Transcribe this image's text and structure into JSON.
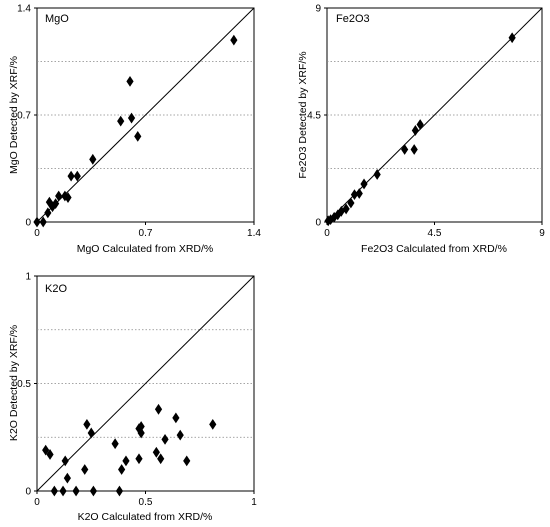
{
  "chart_data": [
    {
      "type": "scatter",
      "title": "MgO",
      "xlabel": "MgO Calculated from XRD/%",
      "ylabel": "MgO Detected by XRF/%",
      "xlim": [
        0,
        1.4
      ],
      "ylim": [
        0,
        1.4
      ],
      "xticks": [
        "0",
        "0.7",
        "1.4"
      ],
      "yticks": [
        "0",
        "0.7",
        "1.4"
      ],
      "grid": "horizontal dotted",
      "reference_line": "y = x",
      "marker": "diamond",
      "points": [
        {
          "x": 0.0,
          "y": 0.0
        },
        {
          "x": 0.04,
          "y": 0.0
        },
        {
          "x": 0.07,
          "y": 0.06
        },
        {
          "x": 0.08,
          "y": 0.13
        },
        {
          "x": 0.1,
          "y": 0.1
        },
        {
          "x": 0.12,
          "y": 0.12
        },
        {
          "x": 0.14,
          "y": 0.17
        },
        {
          "x": 0.18,
          "y": 0.17
        },
        {
          "x": 0.2,
          "y": 0.16
        },
        {
          "x": 0.22,
          "y": 0.3
        },
        {
          "x": 0.26,
          "y": 0.3
        },
        {
          "x": 0.36,
          "y": 0.41
        },
        {
          "x": 0.54,
          "y": 0.66
        },
        {
          "x": 0.6,
          "y": 0.92
        },
        {
          "x": 0.61,
          "y": 0.68
        },
        {
          "x": 0.65,
          "y": 0.56
        },
        {
          "x": 1.27,
          "y": 1.19
        }
      ]
    },
    {
      "type": "scatter",
      "title": "Fe2O3",
      "xlabel": "Fe2O3 Calculated from XRD/%",
      "ylabel": "Fe2O3 Detected by XRF/%",
      "xlim": [
        0,
        9
      ],
      "ylim": [
        0,
        9
      ],
      "xticks": [
        "0",
        "4.5",
        "9"
      ],
      "yticks": [
        "0",
        "4.5",
        "9"
      ],
      "grid": "horizontal dotted",
      "reference_line": "y = x",
      "marker": "diamond",
      "points": [
        {
          "x": 0.05,
          "y": 0.05
        },
        {
          "x": 0.15,
          "y": 0.1
        },
        {
          "x": 0.3,
          "y": 0.2
        },
        {
          "x": 0.45,
          "y": 0.3
        },
        {
          "x": 0.6,
          "y": 0.45
        },
        {
          "x": 0.8,
          "y": 0.55
        },
        {
          "x": 1.0,
          "y": 0.8
        },
        {
          "x": 1.15,
          "y": 1.15
        },
        {
          "x": 1.35,
          "y": 1.2
        },
        {
          "x": 1.55,
          "y": 1.6
        },
        {
          "x": 2.1,
          "y": 2.0
        },
        {
          "x": 3.25,
          "y": 3.05
        },
        {
          "x": 3.65,
          "y": 3.05
        },
        {
          "x": 3.7,
          "y": 3.85
        },
        {
          "x": 3.9,
          "y": 4.1
        },
        {
          "x": 7.75,
          "y": 7.75
        }
      ]
    },
    {
      "type": "scatter",
      "title": "K2O",
      "xlabel": "K2O Calculated from XRD/%",
      "ylabel": "K2O Detected by XRF/%",
      "xlim": [
        0,
        1
      ],
      "ylim": [
        0,
        1
      ],
      "xticks": [
        "0",
        "0.5",
        "1"
      ],
      "yticks": [
        "0",
        "0.5",
        "1"
      ],
      "grid": "horizontal dotted",
      "reference_line": "y = x",
      "marker": "diamond",
      "points": [
        {
          "x": 0.04,
          "y": 0.19
        },
        {
          "x": 0.06,
          "y": 0.17
        },
        {
          "x": 0.08,
          "y": 0.0
        },
        {
          "x": 0.12,
          "y": 0.0
        },
        {
          "x": 0.13,
          "y": 0.14
        },
        {
          "x": 0.14,
          "y": 0.06
        },
        {
          "x": 0.18,
          "y": 0.0
        },
        {
          "x": 0.22,
          "y": 0.1
        },
        {
          "x": 0.23,
          "y": 0.31
        },
        {
          "x": 0.25,
          "y": 0.27
        },
        {
          "x": 0.26,
          "y": 0.0
        },
        {
          "x": 0.36,
          "y": 0.22
        },
        {
          "x": 0.38,
          "y": 0.0
        },
        {
          "x": 0.39,
          "y": 0.1
        },
        {
          "x": 0.41,
          "y": 0.14
        },
        {
          "x": 0.47,
          "y": 0.15
        },
        {
          "x": 0.47,
          "y": 0.29
        },
        {
          "x": 0.48,
          "y": 0.27
        },
        {
          "x": 0.48,
          "y": 0.3
        },
        {
          "x": 0.55,
          "y": 0.18
        },
        {
          "x": 0.56,
          "y": 0.38
        },
        {
          "x": 0.57,
          "y": 0.15
        },
        {
          "x": 0.59,
          "y": 0.24
        },
        {
          "x": 0.64,
          "y": 0.34
        },
        {
          "x": 0.66,
          "y": 0.26
        },
        {
          "x": 0.69,
          "y": 0.14
        },
        {
          "x": 0.81,
          "y": 0.31
        }
      ]
    }
  ]
}
